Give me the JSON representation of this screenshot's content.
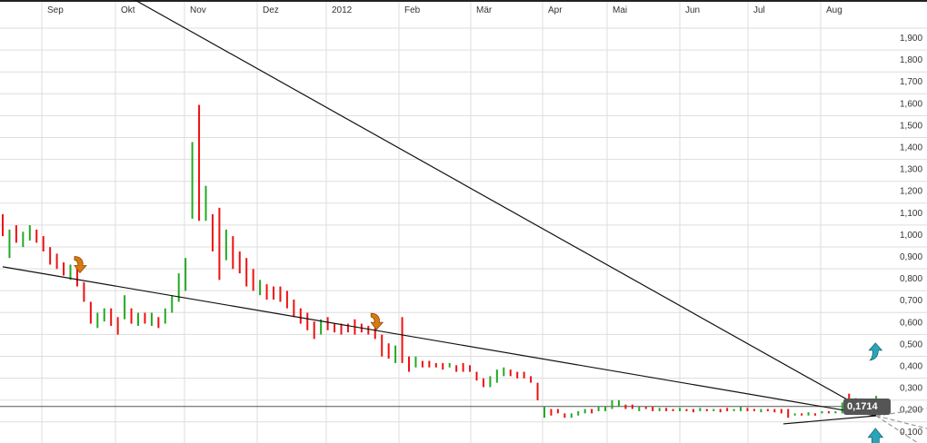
{
  "chart_data": {
    "type": "bar",
    "subtype": "ohlc-high-low",
    "x_tick_labels": [
      "Sep",
      "Okt",
      "Nov",
      "Dez",
      "2012",
      "Feb",
      "Mär",
      "Apr",
      "Mai",
      "Jun",
      "Jul",
      "Aug"
    ],
    "y_tick_labels": [
      "1,900",
      "1,800",
      "1,700",
      "1,600",
      "1,500",
      "1,400",
      "1,300",
      "1,200",
      "1,100",
      "1,000",
      "0,900",
      "0,800",
      "0,700",
      "0,600",
      "0,500",
      "0,400",
      "0,300",
      "0,200",
      "0,100"
    ],
    "ylim": [
      0.1,
      1.9
    ],
    "grid": true,
    "colors": {
      "up": "#22aa22",
      "down": "#ee1111",
      "grid": "#dddddd",
      "trend": "#111111",
      "signal_sell": "#d97a10",
      "signal_buy": "#2aa5b8"
    },
    "current_price": 0.1714,
    "current_price_label": "0,1714",
    "bars": [
      [
        1.05,
        0.95,
        "d"
      ],
      [
        0.98,
        0.85,
        "u"
      ],
      [
        1.0,
        0.92,
        "d"
      ],
      [
        0.97,
        0.9,
        "u"
      ],
      [
        1.0,
        0.93,
        "u"
      ],
      [
        0.98,
        0.92,
        "d"
      ],
      [
        0.95,
        0.88,
        "d"
      ],
      [
        0.9,
        0.82,
        "d"
      ],
      [
        0.87,
        0.8,
        "d"
      ],
      [
        0.83,
        0.77,
        "d"
      ],
      [
        0.82,
        0.75,
        "u"
      ],
      [
        0.8,
        0.72,
        "d"
      ],
      [
        0.74,
        0.65,
        "d"
      ],
      [
        0.65,
        0.55,
        "d"
      ],
      [
        0.6,
        0.53,
        "u"
      ],
      [
        0.62,
        0.56,
        "u"
      ],
      [
        0.62,
        0.54,
        "d"
      ],
      [
        0.58,
        0.5,
        "d"
      ],
      [
        0.68,
        0.57,
        "u"
      ],
      [
        0.62,
        0.55,
        "d"
      ],
      [
        0.6,
        0.54,
        "u"
      ],
      [
        0.6,
        0.55,
        "d"
      ],
      [
        0.6,
        0.54,
        "u"
      ],
      [
        0.58,
        0.53,
        "d"
      ],
      [
        0.62,
        0.55,
        "u"
      ],
      [
        0.68,
        0.6,
        "u"
      ],
      [
        0.78,
        0.65,
        "u"
      ],
      [
        0.85,
        0.7,
        "u"
      ],
      [
        1.38,
        1.03,
        "u"
      ],
      [
        1.55,
        1.02,
        "d"
      ],
      [
        1.18,
        1.02,
        "u"
      ],
      [
        1.05,
        0.88,
        "d"
      ],
      [
        1.08,
        0.75,
        "d"
      ],
      [
        0.98,
        0.84,
        "u"
      ],
      [
        0.95,
        0.8,
        "d"
      ],
      [
        0.88,
        0.78,
        "d"
      ],
      [
        0.85,
        0.72,
        "d"
      ],
      [
        0.8,
        0.7,
        "d"
      ],
      [
        0.75,
        0.68,
        "u"
      ],
      [
        0.73,
        0.66,
        "d"
      ],
      [
        0.72,
        0.66,
        "d"
      ],
      [
        0.72,
        0.65,
        "d"
      ],
      [
        0.7,
        0.62,
        "d"
      ],
      [
        0.66,
        0.58,
        "d"
      ],
      [
        0.62,
        0.55,
        "d"
      ],
      [
        0.6,
        0.52,
        "d"
      ],
      [
        0.56,
        0.48,
        "d"
      ],
      [
        0.57,
        0.5,
        "u"
      ],
      [
        0.58,
        0.52,
        "d"
      ],
      [
        0.55,
        0.51,
        "d"
      ],
      [
        0.55,
        0.5,
        "d"
      ],
      [
        0.55,
        0.51,
        "d"
      ],
      [
        0.57,
        0.5,
        "d"
      ],
      [
        0.55,
        0.51,
        "d"
      ],
      [
        0.54,
        0.5,
        "d"
      ],
      [
        0.53,
        0.48,
        "d"
      ],
      [
        0.5,
        0.4,
        "d"
      ],
      [
        0.46,
        0.39,
        "d"
      ],
      [
        0.45,
        0.37,
        "u"
      ],
      [
        0.58,
        0.37,
        "d"
      ],
      [
        0.4,
        0.33,
        "d"
      ],
      [
        0.4,
        0.35,
        "u"
      ],
      [
        0.38,
        0.35,
        "d"
      ],
      [
        0.38,
        0.35,
        "d"
      ],
      [
        0.37,
        0.35,
        "d"
      ],
      [
        0.37,
        0.34,
        "d"
      ],
      [
        0.37,
        0.35,
        "u"
      ],
      [
        0.36,
        0.33,
        "d"
      ],
      [
        0.37,
        0.33,
        "d"
      ],
      [
        0.36,
        0.33,
        "d"
      ],
      [
        0.33,
        0.29,
        "d"
      ],
      [
        0.3,
        0.26,
        "d"
      ],
      [
        0.31,
        0.26,
        "u"
      ],
      [
        0.34,
        0.28,
        "u"
      ],
      [
        0.35,
        0.31,
        "u"
      ],
      [
        0.34,
        0.31,
        "d"
      ],
      [
        0.33,
        0.3,
        "d"
      ],
      [
        0.33,
        0.3,
        "d"
      ],
      [
        0.31,
        0.28,
        "d"
      ],
      [
        0.28,
        0.2,
        "d"
      ],
      [
        0.17,
        0.12,
        "u"
      ],
      [
        0.16,
        0.13,
        "d"
      ],
      [
        0.16,
        0.14,
        "d"
      ],
      [
        0.14,
        0.12,
        "d"
      ],
      [
        0.14,
        0.12,
        "u"
      ],
      [
        0.15,
        0.13,
        "u"
      ],
      [
        0.16,
        0.14,
        "u"
      ],
      [
        0.16,
        0.14,
        "d"
      ],
      [
        0.17,
        0.15,
        "u"
      ],
      [
        0.17,
        0.15,
        "u"
      ],
      [
        0.2,
        0.16,
        "u"
      ],
      [
        0.2,
        0.17,
        "u"
      ],
      [
        0.18,
        0.16,
        "d"
      ],
      [
        0.18,
        0.16,
        "d"
      ],
      [
        0.17,
        0.15,
        "u"
      ],
      [
        0.17,
        0.16,
        "d"
      ],
      [
        0.17,
        0.15,
        "d"
      ],
      [
        0.165,
        0.15,
        "u"
      ],
      [
        0.165,
        0.15,
        "d"
      ],
      [
        0.16,
        0.15,
        "d"
      ],
      [
        0.165,
        0.15,
        "u"
      ],
      [
        0.16,
        0.15,
        "d"
      ],
      [
        0.16,
        0.145,
        "d"
      ],
      [
        0.165,
        0.15,
        "u"
      ],
      [
        0.16,
        0.15,
        "d"
      ],
      [
        0.16,
        0.15,
        "u"
      ],
      [
        0.16,
        0.145,
        "d"
      ],
      [
        0.165,
        0.15,
        "d"
      ],
      [
        0.16,
        0.15,
        "u"
      ],
      [
        0.17,
        0.15,
        "u"
      ],
      [
        0.165,
        0.15,
        "d"
      ],
      [
        0.16,
        0.15,
        "d"
      ],
      [
        0.16,
        0.145,
        "u"
      ],
      [
        0.16,
        0.15,
        "d"
      ],
      [
        0.16,
        0.145,
        "d"
      ],
      [
        0.16,
        0.14,
        "d"
      ],
      [
        0.16,
        0.12,
        "d"
      ],
      [
        0.14,
        0.13,
        "u"
      ],
      [
        0.14,
        0.13,
        "d"
      ],
      [
        0.145,
        0.13,
        "u"
      ],
      [
        0.14,
        0.13,
        "d"
      ],
      [
        0.15,
        0.14,
        "u"
      ],
      [
        0.15,
        0.14,
        "d"
      ],
      [
        0.15,
        0.14,
        "u"
      ],
      [
        0.19,
        0.14,
        "u"
      ],
      [
        0.23,
        0.16,
        "d"
      ],
      [
        0.21,
        0.18,
        "u"
      ],
      [
        0.2,
        0.18,
        "d"
      ],
      [
        0.19,
        0.16,
        "d"
      ],
      [
        0.22,
        0.16,
        "u"
      ]
    ],
    "trendlines": [
      {
        "from": [
          0,
          0.81
        ],
        "to": [
          129,
          0.129
        ]
      },
      {
        "from": [
          19.5,
          2.03
        ],
        "to": [
          129,
          0.129
        ]
      },
      {
        "from": [
          115.3,
          0.092
        ],
        "to": [
          129,
          0.129
        ]
      }
    ],
    "signals": [
      {
        "type": "sell",
        "bar": 11.4,
        "price": 0.82
      },
      {
        "type": "sell",
        "bar": 55.2,
        "price": 0.56
      },
      {
        "type": "buy",
        "bar": 128.9,
        "price": 0.42
      },
      {
        "type": "buy",
        "bar": 128.9,
        "price": 0.03
      }
    ]
  }
}
